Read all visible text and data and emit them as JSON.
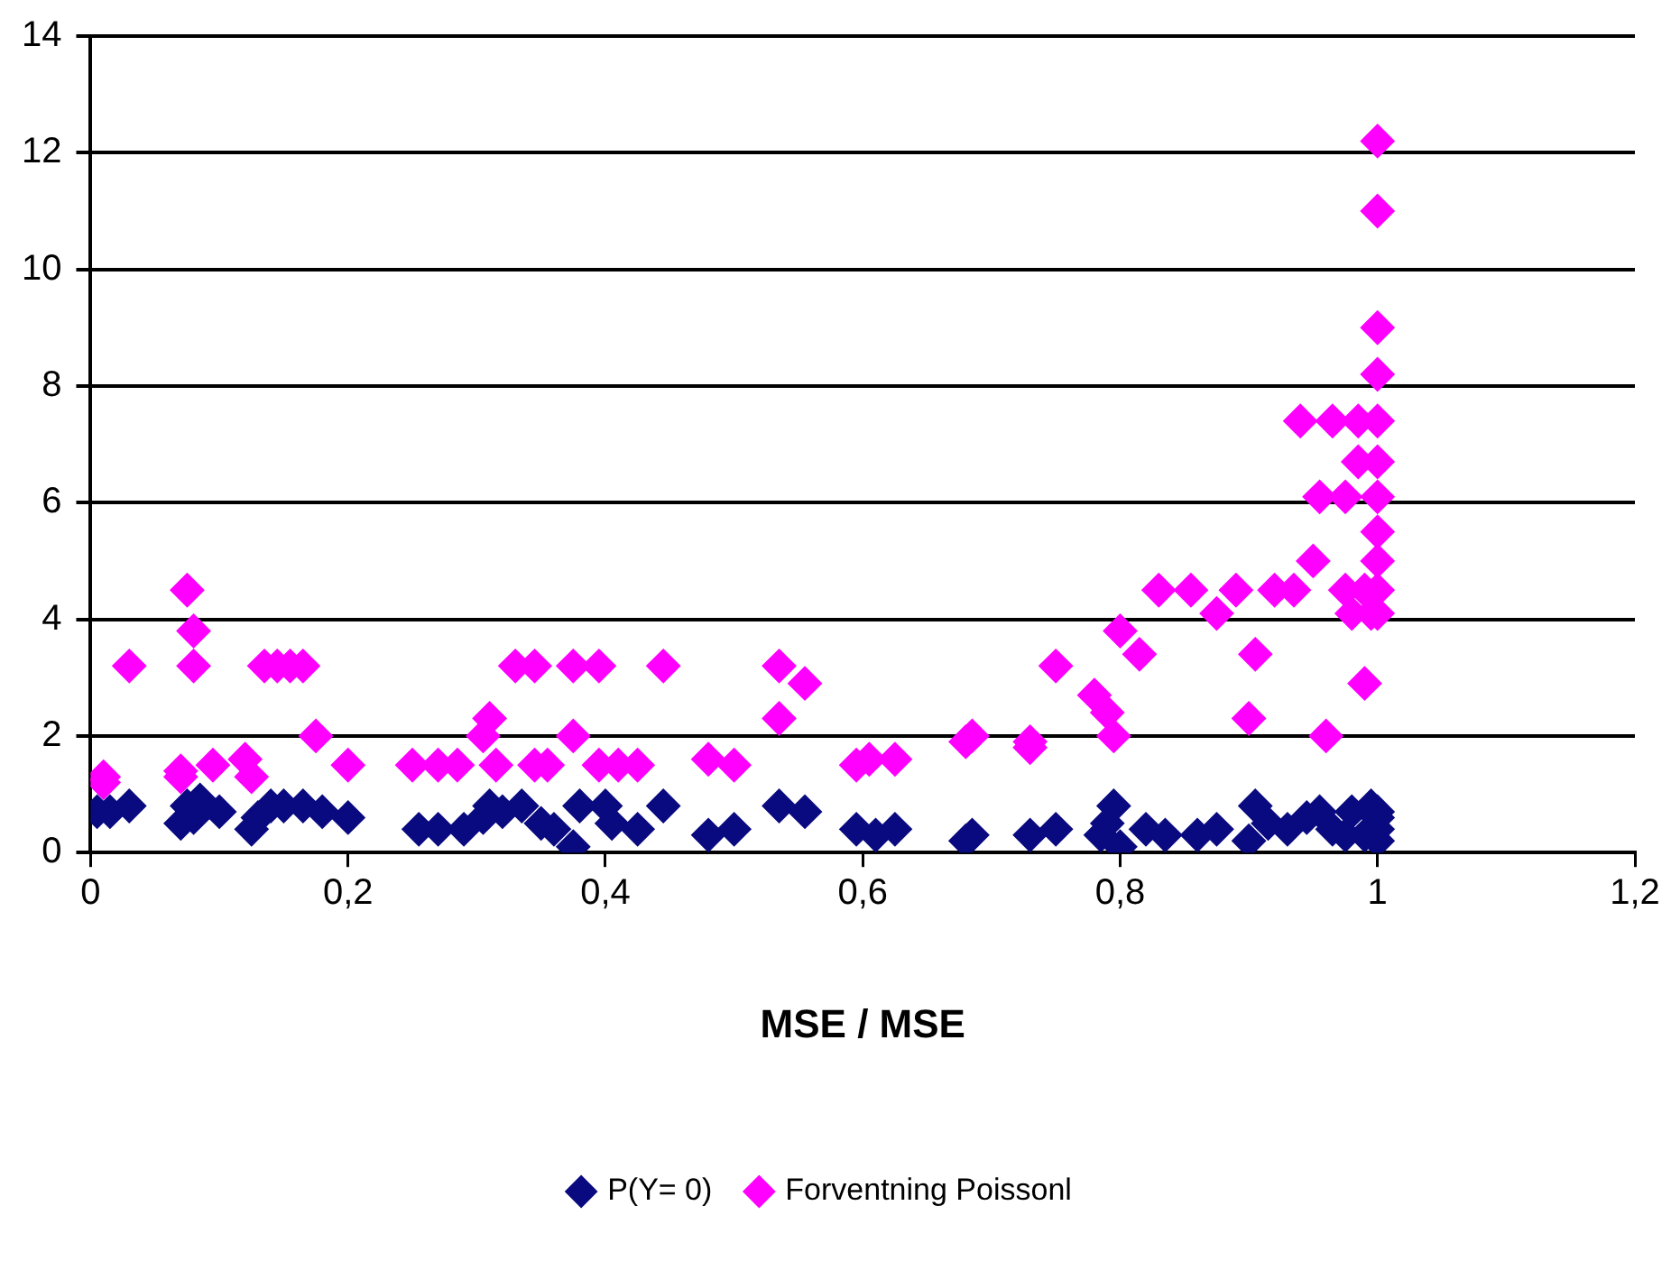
{
  "chart_data": {
    "type": "scatter",
    "xlabel": "MSE / MSE",
    "xlim": [
      0,
      1.2
    ],
    "xticks": [
      0,
      {
        "value": 0.2,
        "label": "0,2"
      },
      {
        "value": 0.4,
        "label": "0,4"
      },
      {
        "value": 0.6,
        "label": "0,6"
      },
      {
        "value": 0.8,
        "label": "0,8"
      },
      1,
      {
        "value": 1.2,
        "label": "1,2"
      }
    ],
    "ylim": [
      0,
      14
    ],
    "yticks": [
      0,
      2,
      4,
      6,
      8,
      10,
      12,
      14
    ],
    "grid": "y",
    "legend": "bottom",
    "marker": "diamond",
    "series": [
      {
        "name": "P(Y= 0)",
        "color": "#0a0a80",
        "x": [
          0.005,
          0.015,
          0.03,
          0.07,
          0.075,
          0.08,
          0.085,
          0.1,
          0.125,
          0.13,
          0.14,
          0.15,
          0.165,
          0.18,
          0.2,
          0.255,
          0.27,
          0.29,
          0.305,
          0.31,
          0.32,
          0.335,
          0.35,
          0.36,
          0.375,
          0.38,
          0.4,
          0.405,
          0.425,
          0.445,
          0.48,
          0.5,
          0.535,
          0.555,
          0.595,
          0.61,
          0.625,
          0.68,
          0.685,
          0.73,
          0.75,
          0.785,
          0.79,
          0.795,
          0.8,
          0.82,
          0.835,
          0.86,
          0.875,
          0.9,
          0.905,
          0.915,
          0.93,
          0.945,
          0.955,
          0.965,
          0.975,
          0.98,
          0.99,
          0.995,
          1,
          1,
          1,
          1
        ],
        "values": [
          0.7,
          0.7,
          0.8,
          0.5,
          0.8,
          0.6,
          0.9,
          0.7,
          0.4,
          0.6,
          0.8,
          0.8,
          0.8,
          0.7,
          0.6,
          0.4,
          0.4,
          0.4,
          0.6,
          0.8,
          0.7,
          0.8,
          0.5,
          0.4,
          0.1,
          0.8,
          0.8,
          0.5,
          0.4,
          0.8,
          0.3,
          0.4,
          0.8,
          0.7,
          0.4,
          0.3,
          0.4,
          0.2,
          0.3,
          0.3,
          0.4,
          0.3,
          0.5,
          0.8,
          0.1,
          0.4,
          0.3,
          0.3,
          0.4,
          0.2,
          0.8,
          0.5,
          0.4,
          0.6,
          0.7,
          0.4,
          0.3,
          0.7,
          0.3,
          0.8,
          0.6,
          0.4,
          0.7,
          0.2
        ]
      },
      {
        "name": "Forventning Poissonl",
        "color": "#ff00ff",
        "x": [
          0.01,
          0.01,
          0.03,
          0.07,
          0.07,
          0.075,
          0.08,
          0.08,
          0.095,
          0.12,
          0.125,
          0.135,
          0.145,
          0.155,
          0.165,
          0.175,
          0.2,
          0.25,
          0.27,
          0.285,
          0.305,
          0.31,
          0.315,
          0.33,
          0.345,
          0.345,
          0.355,
          0.375,
          0.375,
          0.395,
          0.395,
          0.41,
          0.425,
          0.445,
          0.48,
          0.5,
          0.535,
          0.535,
          0.555,
          0.595,
          0.605,
          0.625,
          0.68,
          0.685,
          0.73,
          0.73,
          0.75,
          0.78,
          0.79,
          0.795,
          0.8,
          0.815,
          0.83,
          0.855,
          0.875,
          0.89,
          0.9,
          0.905,
          0.92,
          0.935,
          0.94,
          0.95,
          0.96,
          0.955,
          0.965,
          0.975,
          0.975,
          0.98,
          0.985,
          0.985,
          0.99,
          0.99,
          0.995,
          1,
          1,
          1,
          1,
          1,
          1,
          1,
          1,
          1,
          1,
          1
        ],
        "values": [
          1.3,
          1.2,
          3.2,
          1.4,
          1.3,
          4.5,
          3.8,
          3.2,
          1.5,
          1.6,
          1.3,
          3.2,
          3.2,
          3.2,
          3.2,
          2.0,
          1.5,
          1.5,
          1.5,
          1.5,
          2.0,
          2.3,
          1.5,
          3.2,
          3.2,
          1.5,
          1.5,
          2.0,
          3.2,
          3.2,
          1.5,
          1.5,
          1.5,
          3.2,
          1.6,
          1.5,
          2.3,
          3.2,
          2.9,
          1.5,
          1.6,
          1.6,
          1.9,
          2.0,
          1.8,
          1.9,
          3.2,
          2.7,
          2.4,
          2.0,
          3.8,
          3.4,
          4.5,
          4.5,
          4.1,
          4.5,
          2.3,
          3.4,
          4.5,
          4.5,
          7.4,
          5.0,
          2.0,
          6.1,
          7.4,
          6.1,
          4.5,
          4.1,
          7.4,
          6.7,
          2.9,
          4.5,
          4.1,
          7.4,
          6.7,
          6.1,
          5.5,
          5.0,
          4.5,
          4.1,
          8.2,
          9.0,
          11.0,
          12.2
        ]
      }
    ]
  }
}
